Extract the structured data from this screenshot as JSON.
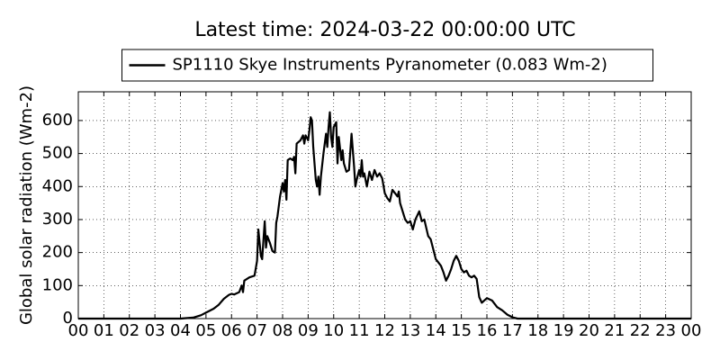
{
  "chart_data": {
    "type": "line",
    "title": "Latest time: 2024-03-22 00:00:00 UTC",
    "ylabel": "Global solar radiation (Wm-2)",
    "legend": "upper center",
    "grid": true,
    "xlim": [
      0,
      24
    ],
    "xticks": [
      {
        "value": 0,
        "label": "00"
      },
      {
        "value": 1,
        "label": "01"
      },
      {
        "value": 2,
        "label": "02"
      },
      {
        "value": 3,
        "label": "03"
      },
      {
        "value": 4,
        "label": "04"
      },
      {
        "value": 5,
        "label": "05"
      },
      {
        "value": 6,
        "label": "06"
      },
      {
        "value": 7,
        "label": "07"
      },
      {
        "value": 8,
        "label": "08"
      },
      {
        "value": 9,
        "label": "09"
      },
      {
        "value": 10,
        "label": "10"
      },
      {
        "value": 11,
        "label": "11"
      },
      {
        "value": 12,
        "label": "12"
      },
      {
        "value": 13,
        "label": "13"
      },
      {
        "value": 14,
        "label": "14"
      },
      {
        "value": 15,
        "label": "15"
      },
      {
        "value": 16,
        "label": "16"
      },
      {
        "value": 17,
        "label": "17"
      },
      {
        "value": 18,
        "label": "18"
      },
      {
        "value": 19,
        "label": "19"
      },
      {
        "value": 20,
        "label": "20"
      },
      {
        "value": 21,
        "label": "21"
      },
      {
        "value": 22,
        "label": "22"
      },
      {
        "value": 23,
        "label": "23"
      },
      {
        "value": 24,
        "label": "00"
      }
    ],
    "ylim": [
      0,
      687
    ],
    "yticks": [
      0,
      100,
      200,
      300,
      400,
      500,
      600
    ],
    "x": [
      0,
      4.0,
      4.5,
      4.8,
      5.0,
      5.3,
      5.5,
      5.7,
      5.9,
      6.0,
      6.1,
      6.3,
      6.4,
      6.45,
      6.5,
      6.7,
      6.9,
      7.0,
      7.05,
      7.15,
      7.2,
      7.3,
      7.35,
      7.4,
      7.5,
      7.6,
      7.7,
      7.75,
      7.8,
      7.9,
      8.0,
      8.05,
      8.1,
      8.15,
      8.2,
      8.3,
      8.4,
      8.45,
      8.5,
      8.55,
      8.7,
      8.8,
      8.85,
      8.9,
      9.0,
      9.05,
      9.1,
      9.15,
      9.2,
      9.3,
      9.35,
      9.4,
      9.45,
      9.5,
      9.6,
      9.7,
      9.75,
      9.8,
      9.85,
      9.9,
      9.95,
      10.0,
      10.1,
      10.15,
      10.2,
      10.3,
      10.35,
      10.4,
      10.5,
      10.6,
      10.7,
      10.75,
      10.8,
      10.85,
      10.9,
      11.0,
      11.05,
      11.1,
      11.15,
      11.2,
      11.3,
      11.4,
      11.5,
      11.6,
      11.7,
      11.8,
      11.9,
      12.0,
      12.1,
      12.2,
      12.3,
      12.4,
      12.5,
      12.55,
      12.6,
      12.8,
      12.9,
      13.0,
      13.1,
      13.2,
      13.35,
      13.45,
      13.55,
      13.7,
      13.8,
      14.0,
      14.2,
      14.3,
      14.4,
      14.5,
      14.6,
      14.7,
      14.8,
      14.9,
      15.0,
      15.1,
      15.2,
      15.3,
      15.4,
      15.5,
      15.6,
      15.7,
      15.8,
      15.9,
      16.0,
      16.2,
      16.4,
      16.6,
      16.8,
      17.0,
      17.2,
      24
    ],
    "series": [
      {
        "name": "SP1110 Skye Instruments Pyranometer (0.083 Wm-2)",
        "color": "#000000",
        "values": [
          0,
          0,
          3,
          10,
          18,
          30,
          42,
          60,
          72,
          75,
          73,
          80,
          100,
          80,
          115,
          125,
          130,
          175,
          270,
          190,
          180,
          295,
          215,
          250,
          230,
          205,
          200,
          290,
          310,
          370,
          410,
          385,
          420,
          360,
          480,
          485,
          480,
          490,
          440,
          530,
          540,
          555,
          530,
          555,
          540,
          570,
          610,
          600,
          520,
          420,
          400,
          430,
          375,
          430,
          500,
          560,
          520,
          580,
          625,
          550,
          520,
          580,
          595,
          470,
          550,
          480,
          510,
          470,
          445,
          450,
          560,
          510,
          460,
          400,
          420,
          450,
          430,
          480,
          430,
          440,
          400,
          445,
          420,
          450,
          430,
          440,
          425,
          380,
          365,
          355,
          390,
          380,
          370,
          385,
          350,
          300,
          290,
          295,
          270,
          300,
          325,
          295,
          300,
          250,
          240,
          180,
          160,
          140,
          115,
          130,
          150,
          175,
          190,
          175,
          150,
          140,
          145,
          130,
          125,
          130,
          120,
          65,
          48,
          55,
          62,
          55,
          35,
          25,
          12,
          4,
          0,
          0
        ]
      }
    ]
  }
}
